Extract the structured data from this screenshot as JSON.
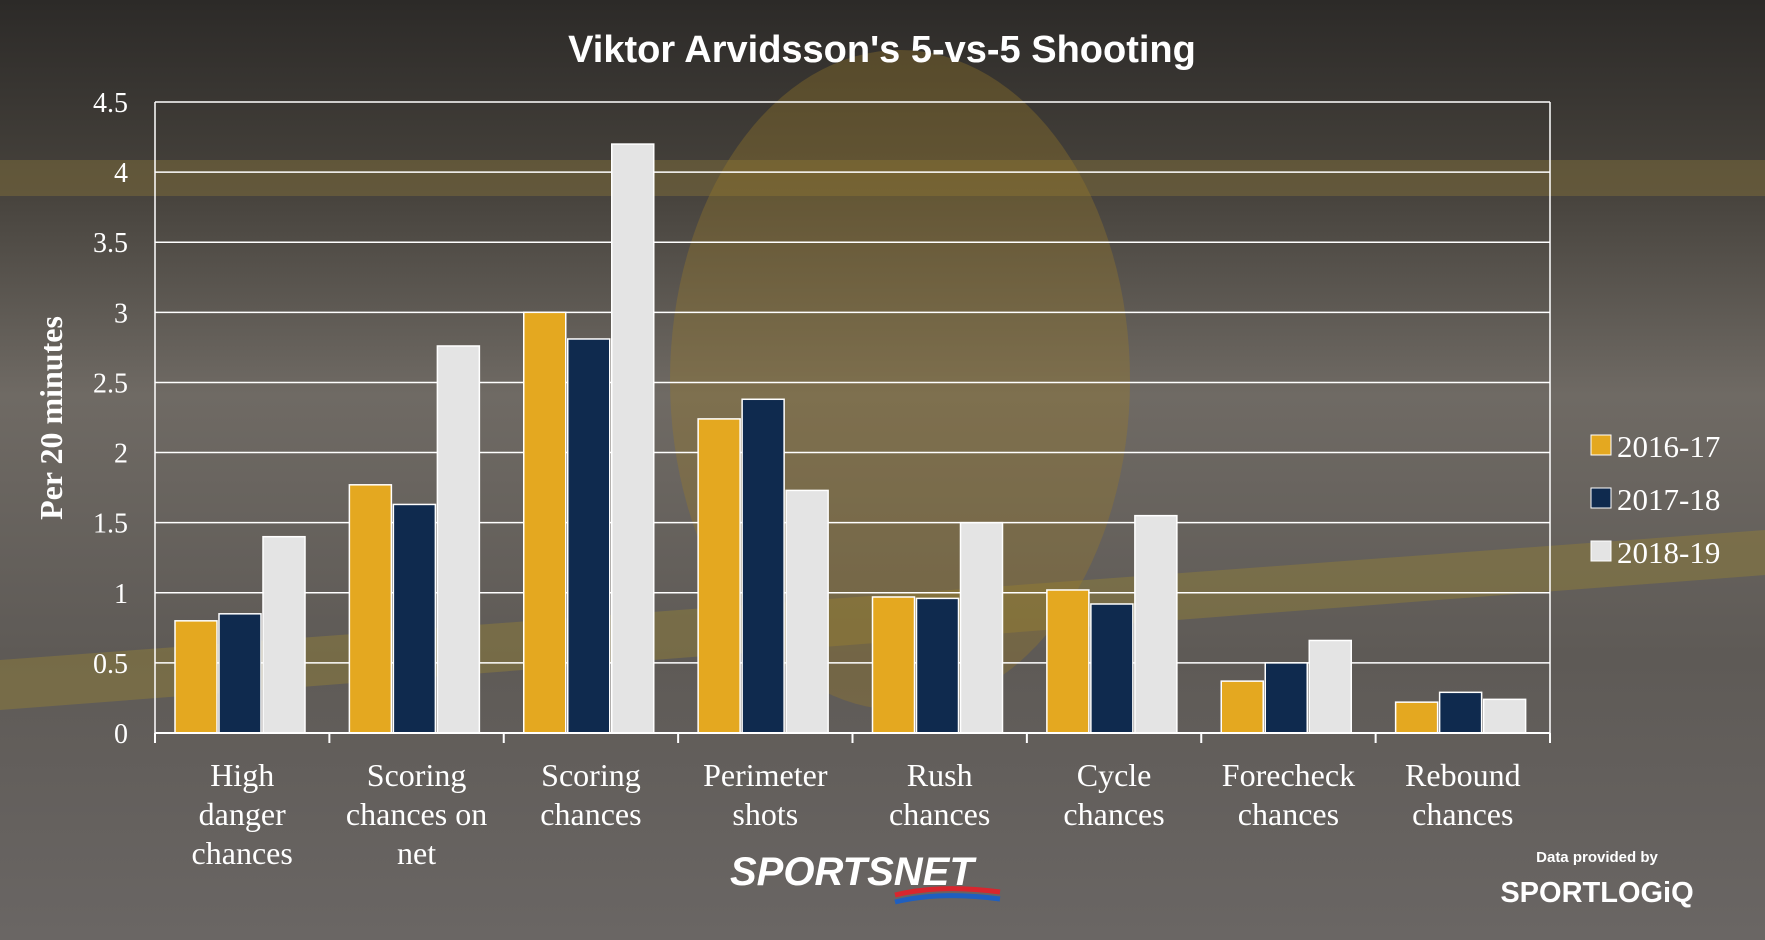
{
  "chart_data": {
    "type": "bar",
    "title": "Viktor Arvidsson's 5-vs-5 Shooting",
    "ylabel": "Per 20 minutes",
    "xlabel": "",
    "ylim": [
      0,
      4.5
    ],
    "yticks": [
      "0",
      "0.5",
      "1",
      "1.5",
      "2",
      "2.5",
      "3",
      "3.5",
      "4",
      "4.5"
    ],
    "grid": true,
    "legend_position": "right",
    "categories": [
      [
        "High",
        "danger",
        "chances"
      ],
      [
        "Scoring",
        "chances on",
        "net"
      ],
      [
        "Scoring",
        "chances"
      ],
      [
        "Perimeter",
        "shots"
      ],
      [
        "Rush",
        "chances"
      ],
      [
        "Cycle",
        "chances"
      ],
      [
        "Forecheck",
        "chances"
      ],
      [
        "Rebound",
        "chances"
      ]
    ],
    "series": [
      {
        "name": "2016-17",
        "color": "#e4a820",
        "values": [
          0.8,
          1.77,
          3.0,
          2.24,
          0.97,
          1.02,
          0.37,
          0.22
        ]
      },
      {
        "name": "2017-18",
        "color": "#0f2a4e",
        "values": [
          0.85,
          1.63,
          2.81,
          2.38,
          0.96,
          0.92,
          0.5,
          0.29
        ]
      },
      {
        "name": "2018-19",
        "color": "#e4e4e4",
        "values": [
          1.4,
          2.76,
          4.2,
          1.73,
          1.5,
          1.55,
          0.66,
          0.24
        ]
      }
    ]
  },
  "credits": {
    "broadcaster": "SPORTSNET",
    "provider_note": "Data provided by",
    "provider": "SPORTLOGiQ"
  }
}
